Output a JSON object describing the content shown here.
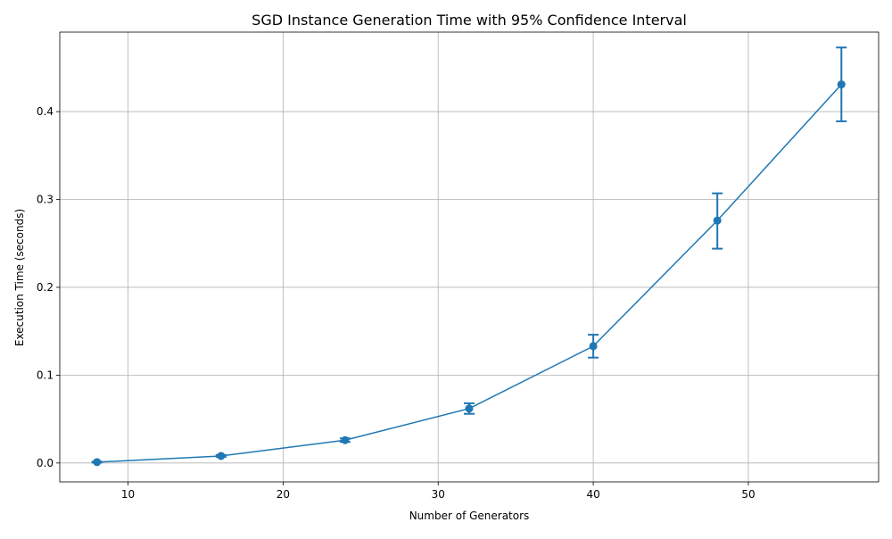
{
  "chart_data": {
    "type": "line",
    "title": "SGD Instance Generation Time with 95% Confidence Interval",
    "xlabel": "Number of Generators",
    "ylabel": "Execution Time (seconds)",
    "xlim": [
      5.6,
      58.4
    ],
    "ylim": [
      -0.0215,
      0.4905
    ],
    "xticks": [
      10,
      20,
      30,
      40,
      50
    ],
    "yticks": [
      0.0,
      0.1,
      0.2,
      0.3,
      0.4
    ],
    "xtick_labels": [
      "10",
      "20",
      "30",
      "40",
      "50"
    ],
    "ytick_labels": [
      "0.0",
      "0.1",
      "0.2",
      "0.3",
      "0.4"
    ],
    "grid": true,
    "color": "#1f77b4",
    "series": [
      {
        "x": [
          8,
          16,
          24,
          32,
          40,
          48,
          56
        ],
        "y": [
          0.001,
          0.008,
          0.026,
          0.062,
          0.133,
          0.276,
          0.431
        ],
        "ci_low": [
          0.0005,
          0.007,
          0.024,
          0.056,
          0.12,
          0.244,
          0.389
        ],
        "ci_high": [
          0.0015,
          0.009,
          0.028,
          0.068,
          0.146,
          0.307,
          0.473
        ]
      }
    ]
  }
}
